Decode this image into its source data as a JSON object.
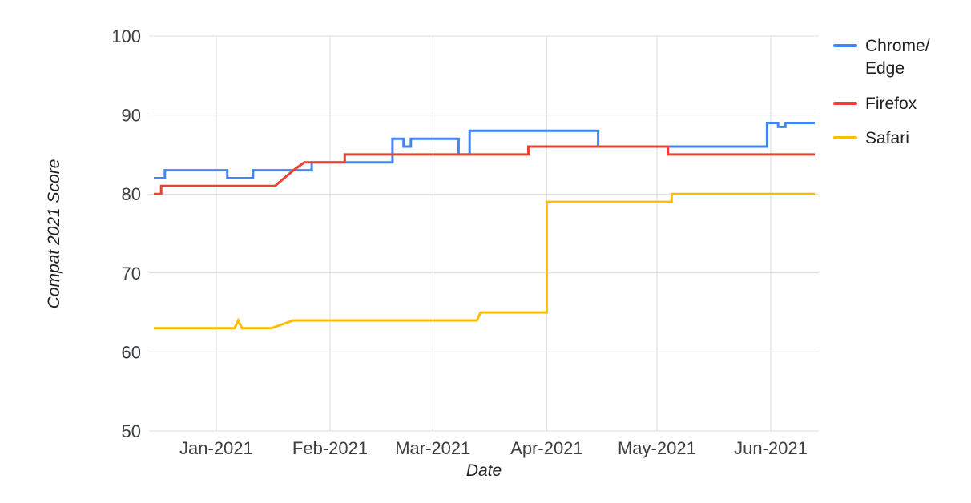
{
  "chart_data": {
    "type": "line",
    "title": "",
    "xlabel": "Date",
    "ylabel": "Compat 2021 Score",
    "x_unit": "days since 2020-12-15",
    "x_domain": [
      0,
      180
    ],
    "y_domain": [
      50,
      100
    ],
    "grid": true,
    "grid_color": "#dadce0",
    "tick_color": "#3c4043",
    "legend_position": "right",
    "y_ticks": [
      {
        "value": 50,
        "label": "50"
      },
      {
        "value": 60,
        "label": "60"
      },
      {
        "value": 70,
        "label": "70"
      },
      {
        "value": 80,
        "label": "80"
      },
      {
        "value": 90,
        "label": "90"
      },
      {
        "value": 100,
        "label": "100"
      }
    ],
    "x_ticks": [
      {
        "value": 17,
        "label": "Jan-2021"
      },
      {
        "value": 48,
        "label": "Feb-2021"
      },
      {
        "value": 76,
        "label": "Mar-2021"
      },
      {
        "value": 107,
        "label": "Apr-2021"
      },
      {
        "value": 137,
        "label": "May-2021"
      },
      {
        "value": 168,
        "label": "Jun-2021"
      }
    ],
    "series": [
      {
        "name": "Chrome/Edge",
        "legend_label": "Chrome/\nEdge",
        "color": "#4285f4",
        "points": [
          [
            0,
            82
          ],
          [
            3,
            82
          ],
          [
            3,
            83
          ],
          [
            20,
            83
          ],
          [
            20,
            82
          ],
          [
            27,
            82
          ],
          [
            27,
            83
          ],
          [
            43,
            83
          ],
          [
            43,
            84
          ],
          [
            65,
            84
          ],
          [
            65,
            87
          ],
          [
            68,
            87
          ],
          [
            68,
            86
          ],
          [
            70,
            86
          ],
          [
            70,
            87
          ],
          [
            83,
            87
          ],
          [
            83,
            85
          ],
          [
            86,
            85
          ],
          [
            86,
            88
          ],
          [
            121,
            88
          ],
          [
            121,
            86
          ],
          [
            167,
            86
          ],
          [
            167,
            89
          ],
          [
            170,
            89
          ],
          [
            170,
            88.5
          ],
          [
            172,
            88.5
          ],
          [
            172,
            89
          ],
          [
            180,
            89
          ]
        ]
      },
      {
        "name": "Firefox",
        "legend_label": "Firefox",
        "color": "#ea4335",
        "points": [
          [
            0,
            80
          ],
          [
            2,
            80
          ],
          [
            2,
            81
          ],
          [
            33,
            81
          ],
          [
            38,
            83
          ],
          [
            41,
            84
          ],
          [
            52,
            84
          ],
          [
            52,
            85
          ],
          [
            102,
            85
          ],
          [
            102,
            86
          ],
          [
            140,
            86
          ],
          [
            140,
            85
          ],
          [
            180,
            85
          ]
        ]
      },
      {
        "name": "Safari",
        "legend_label": "Safari",
        "color": "#fbbc04",
        "points": [
          [
            0,
            63
          ],
          [
            22,
            63
          ],
          [
            23,
            64
          ],
          [
            24,
            63
          ],
          [
            32,
            63
          ],
          [
            38,
            64
          ],
          [
            88,
            64
          ],
          [
            89,
            65
          ],
          [
            107,
            65
          ],
          [
            107,
            79
          ],
          [
            141,
            79
          ],
          [
            141,
            80
          ],
          [
            180,
            80
          ]
        ]
      }
    ]
  }
}
